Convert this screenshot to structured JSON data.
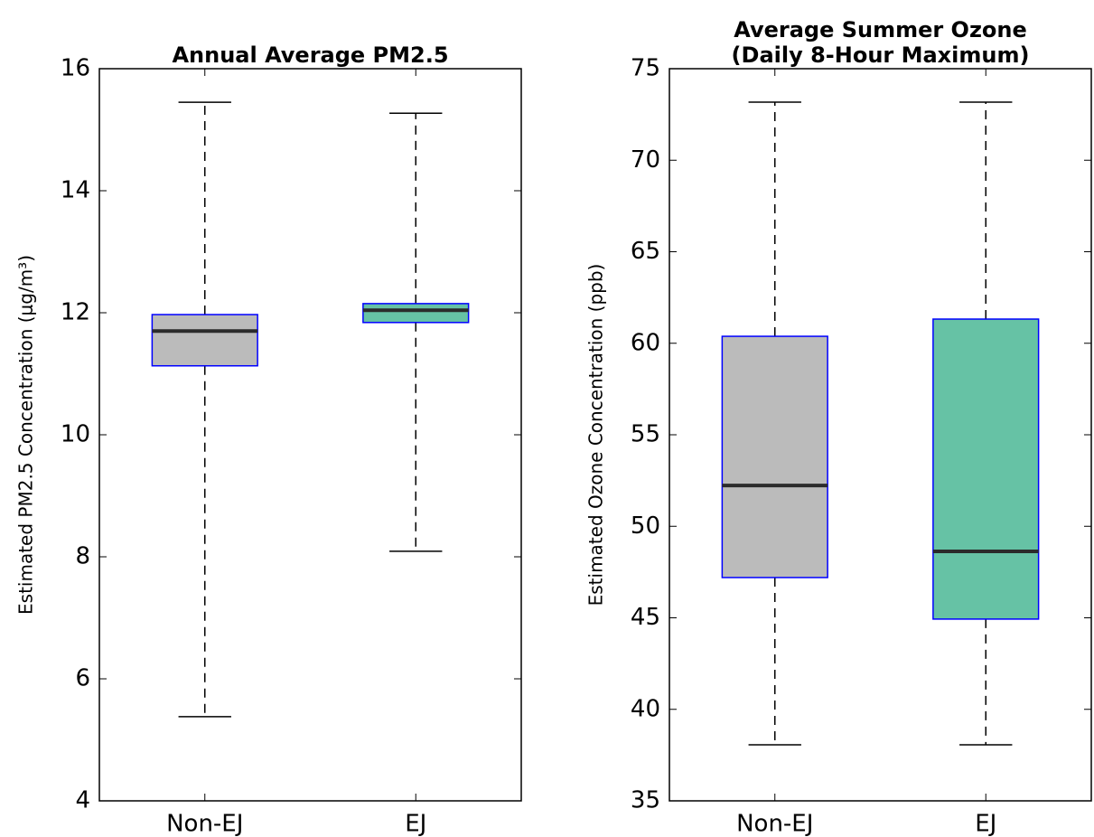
{
  "chart_data": [
    {
      "type": "box",
      "title": [
        "Annual Average PM2.5"
      ],
      "y_label": "Estimated PM2.5 Concentration (μg/m³)",
      "categories": [
        "Non-EJ",
        "EJ"
      ],
      "colors": [
        "#bbbbbb",
        "#66c2a5"
      ],
      "boxes": [
        {
          "whisker_low": 5.38,
          "q1": 11.13,
          "median": 11.7,
          "q3": 11.97,
          "whisker_high": 15.45
        },
        {
          "whisker_low": 8.09,
          "q1": 11.84,
          "median": 12.04,
          "q3": 12.15,
          "whisker_high": 15.27
        }
      ],
      "ylim": [
        4,
        16
      ],
      "yticks": [
        4,
        6,
        8,
        10,
        12,
        14,
        16
      ]
    },
    {
      "type": "box",
      "title": [
        "Average Summer Ozone",
        "(Daily 8-Hour Maximum)"
      ],
      "y_label": "Estimated Ozone Concentration (ppb)",
      "categories": [
        "Non-EJ",
        "EJ"
      ],
      "colors": [
        "#bbbbbb",
        "#66c2a5"
      ],
      "boxes": [
        {
          "whisker_low": 38.06,
          "q1": 47.2,
          "median": 52.23,
          "q3": 60.38,
          "whisker_high": 73.17
        },
        {
          "whisker_low": 38.06,
          "q1": 44.93,
          "median": 48.63,
          "q3": 61.32,
          "whisker_high": 73.17
        }
      ],
      "ylim": [
        35,
        75
      ],
      "yticks": [
        35,
        40,
        45,
        50,
        55,
        60,
        65,
        70,
        75
      ]
    }
  ]
}
